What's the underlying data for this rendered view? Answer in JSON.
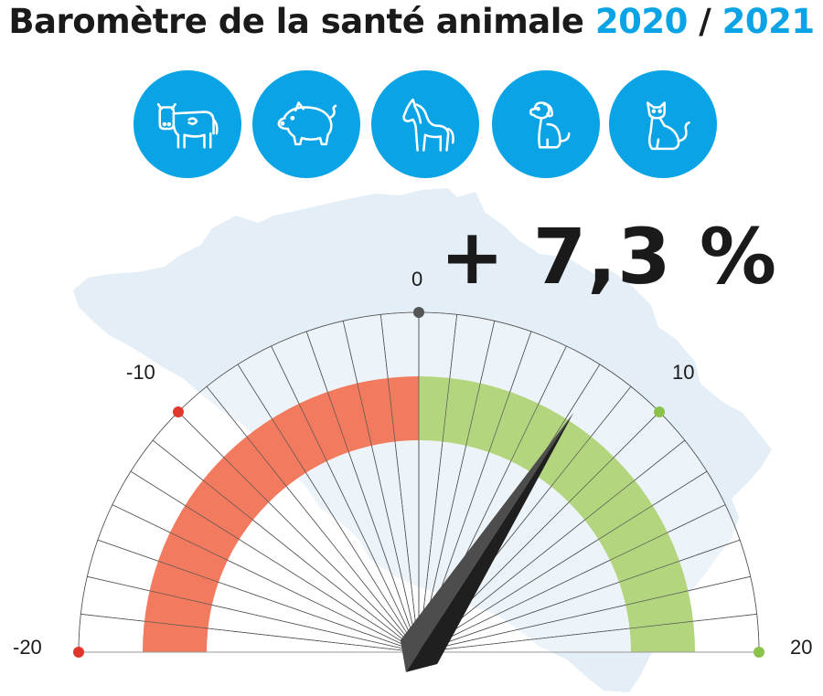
{
  "header": {
    "title_main": "Baromètre de la santé animale",
    "year_start": "2020",
    "separator": "/",
    "year_end": "2021"
  },
  "icons": [
    {
      "name": "cow-icon"
    },
    {
      "name": "pig-icon"
    },
    {
      "name": "horse-icon"
    },
    {
      "name": "dog-icon"
    },
    {
      "name": "cat-icon"
    }
  ],
  "gauge": {
    "value_text": "+ 7,3 %",
    "value": 7.3,
    "min": -20,
    "max": 20,
    "labels": {
      "min": "-20",
      "neg_mid": "-10",
      "zero": "0",
      "pos_mid": "10",
      "max": "20"
    },
    "colors": {
      "negative": "#f27a5e",
      "positive": "#b3d57d",
      "background_map": "#e3eef6",
      "accent": "#0aa3e5",
      "needle_dark": "#1f1f1f",
      "needle_light": "#4d4d4d"
    }
  }
}
